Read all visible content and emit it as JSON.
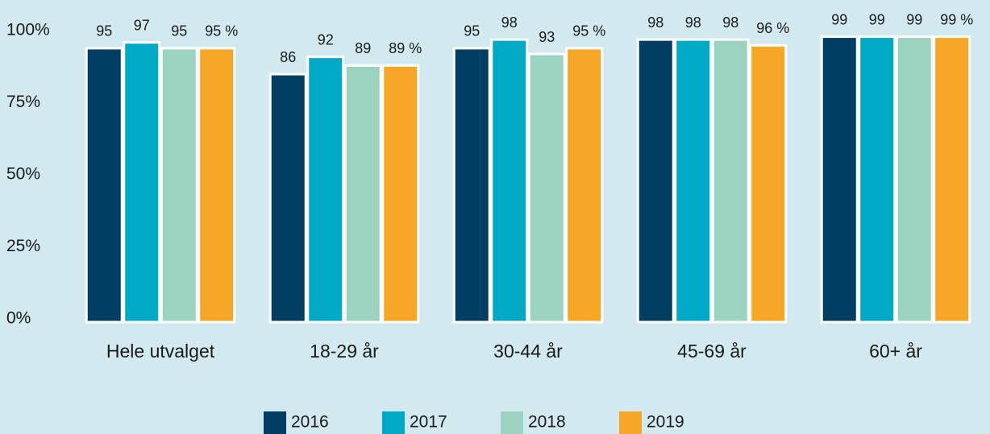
{
  "chart_data": {
    "type": "bar",
    "categories": [
      "Hele utvalget",
      "18-29 år",
      "30-44 år",
      "45-69 år",
      "60+ år"
    ],
    "series": [
      {
        "name": "2016",
        "color": "#003f63",
        "values": [
          95,
          86,
          95,
          98,
          99
        ]
      },
      {
        "name": "2017",
        "color": "#00aac7",
        "values": [
          97,
          92,
          98,
          98,
          99
        ]
      },
      {
        "name": "2018",
        "color": "#9bd3c0",
        "values": [
          95,
          89,
          93,
          98,
          99
        ]
      },
      {
        "name": "2019",
        "color": "#f6a725",
        "values": [
          95,
          89,
          95,
          96,
          99
        ],
        "value_labels": [
          "95 %",
          "89 %",
          "95 %",
          "96 %",
          "99 %"
        ]
      }
    ],
    "ylim": [
      0,
      100
    ],
    "yticks": [
      {
        "value": 0,
        "label": "0%"
      },
      {
        "value": 25,
        "label": "25%"
      },
      {
        "value": 50,
        "label": "50%"
      },
      {
        "value": 75,
        "label": "75%"
      },
      {
        "value": 100,
        "label": "100%"
      }
    ],
    "legend": "bottom"
  }
}
